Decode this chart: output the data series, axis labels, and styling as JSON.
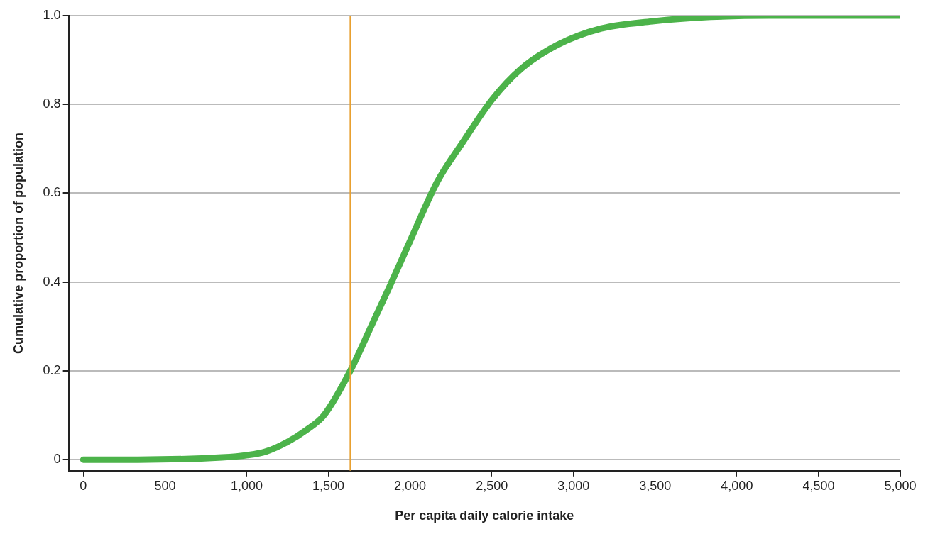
{
  "chart_data": {
    "type": "line",
    "xlabel": "Per capita daily calorie intake",
    "ylabel": "Cumulative proportion of population",
    "series": [
      {
        "color": "#4cb34a",
        "x": [
          0,
          335,
          848,
          1004,
          1116,
          1250,
          1362,
          1473,
          1634,
          1786,
          1875,
          2009,
          2165,
          2321,
          2500,
          2679,
          2902,
          3170,
          3482,
          3839,
          4196,
          5000
        ],
        "values": [
          0,
          0,
          0.005,
          0.01,
          0.018,
          0.04,
          0.066,
          0.1,
          0.2,
          0.32,
          0.39,
          0.5,
          0.625,
          0.714,
          0.81,
          0.88,
          0.934,
          0.971,
          0.987,
          0.997,
          1.0,
          1.0
        ]
      }
    ],
    "xlim": [
      -90,
      5000
    ],
    "xticks": [
      0,
      {
        "value": 500,
        "label": "500"
      },
      {
        "value": 1000,
        "label": "1,000"
      },
      {
        "value": 1500,
        "label": "1,500"
      },
      {
        "value": 2000,
        "label": "2,000"
      },
      {
        "value": 2500,
        "label": "2,500"
      },
      {
        "value": 3000,
        "label": "3,000"
      },
      {
        "value": 3500,
        "label": "3,500"
      },
      {
        "value": 4000,
        "label": "4,000"
      },
      {
        "value": 4500,
        "label": "4,500"
      },
      {
        "value": 5000,
        "label": "5,000"
      }
    ],
    "ylim": [
      -0.025,
      1.0
    ],
    "yticks": [
      0,
      0.2,
      0.4,
      0.6,
      0.8,
      {
        "value": 1,
        "label": "1.0"
      }
    ],
    "ref_lines": [
      {
        "axis": "x",
        "value": 1634,
        "color": "#e8a030"
      }
    ],
    "grid": "y",
    "legend": false,
    "marker": "none",
    "line_style": "solid"
  }
}
